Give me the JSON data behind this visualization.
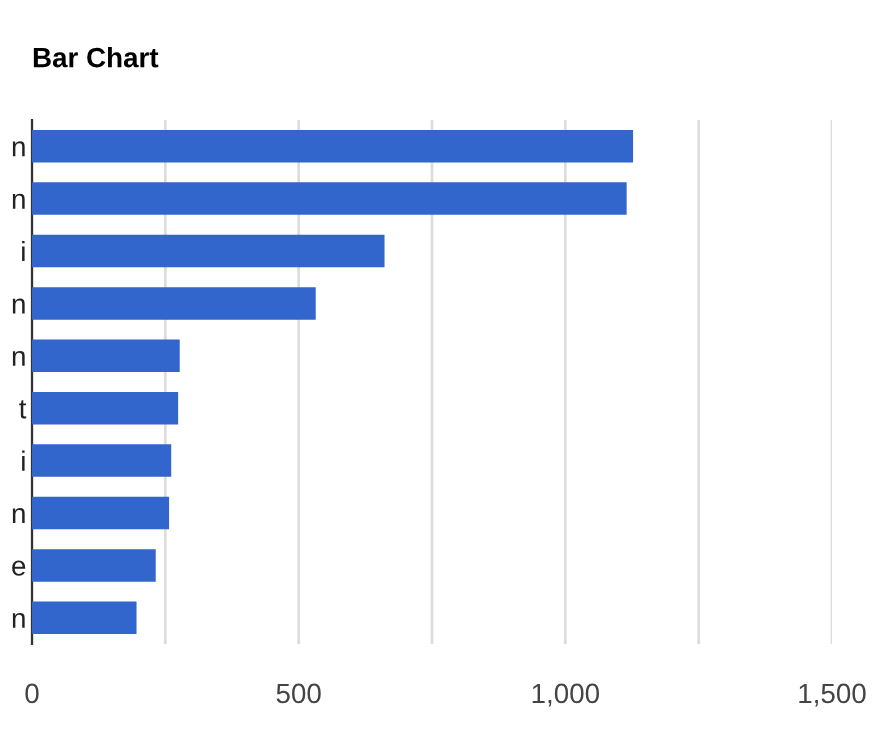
{
  "chart_data": {
    "type": "bar",
    "title": "Bar Chart",
    "orientation": "horizontal",
    "categories": [
      "n",
      "n",
      "i",
      "n",
      "n",
      "t",
      "i",
      "n",
      "e",
      "n"
    ],
    "series": [
      {
        "color": "#3366cc",
        "values": [
          1127,
          1115,
          661,
          532,
          277,
          274,
          261,
          257,
          232,
          196
        ]
      }
    ],
    "xlim": [
      0,
      1500
    ],
    "xticks": [
      0,
      {
        "value": 250,
        "label": null
      },
      {
        "value": 500,
        "label": "500"
      },
      {
        "value": 750,
        "label": null
      },
      {
        "value": 1000,
        "label": "1,000"
      },
      {
        "value": 1250,
        "label": null
      },
      {
        "value": 1500,
        "label": "1,500"
      }
    ],
    "grid": "x"
  }
}
